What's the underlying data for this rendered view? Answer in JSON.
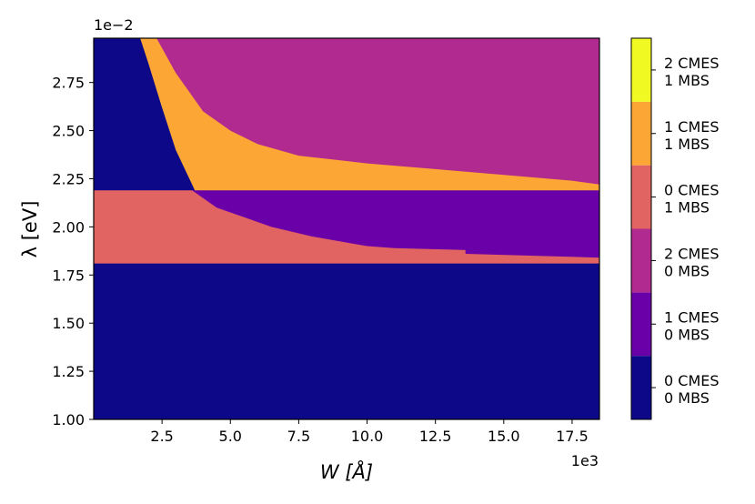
{
  "chart_data": {
    "type": "heatmap",
    "title": "",
    "xlabel": "W [Å]",
    "ylabel": "λ [eV]",
    "x_multiplier": "1e3",
    "y_multiplier": "1e−2",
    "xlim": [
      0,
      18.5
    ],
    "ylim": [
      1.0,
      2.98
    ],
    "x_ticks": [
      2.5,
      5.0,
      7.5,
      10.0,
      12.5,
      15.0,
      17.5
    ],
    "x_tick_labels": [
      "2.5",
      "5.0",
      "7.5",
      "10.0",
      "12.5",
      "15.0",
      "17.5"
    ],
    "y_ticks": [
      1.0,
      1.25,
      1.5,
      1.75,
      2.0,
      2.25,
      2.5,
      2.75
    ],
    "y_tick_labels": [
      "1.00",
      "1.25",
      "1.50",
      "1.75",
      "2.00",
      "2.25",
      "2.50",
      "2.75"
    ],
    "colormap": "plasma",
    "legend_placement": "colorbar-right",
    "classes": [
      {
        "id": 0,
        "line1": "0 CMES",
        "line2": "0 MBS",
        "color": "#0d0887"
      },
      {
        "id": 1,
        "line1": "1 CMES",
        "line2": "0 MBS",
        "color": "#6a00a8"
      },
      {
        "id": 2,
        "line1": "2 CMES",
        "line2": "0 MBS",
        "color": "#b12a90"
      },
      {
        "id": 3,
        "line1": "0 CMES",
        "line2": "1 MBS",
        "color": "#e16462"
      },
      {
        "id": 4,
        "line1": "1 CMES",
        "line2": "1 MBS",
        "color": "#fca636"
      },
      {
        "id": 5,
        "line1": "2 CMES",
        "line2": "1 MBS",
        "color": "#f0f921"
      }
    ],
    "regions": [
      {
        "class": 0,
        "description": "lambda < 1.81 for all W"
      },
      {
        "class": 3,
        "description": "1.81 < lambda < 2.19, left of boundary"
      },
      {
        "class": 1,
        "description": "1.81 < lambda < 2.19, right of boundary"
      },
      {
        "class": 0,
        "description": "lambda > 2.19, small W"
      },
      {
        "class": 4,
        "description": "lambda > 2.19, between boundaries"
      },
      {
        "class": 2,
        "description": "lambda > 2.19, large W"
      }
    ],
    "boundaries": {
      "lower_band_min": 1.81,
      "lower_band_max": 2.19,
      "class3_to_class1": [
        [
          3.6,
          2.19
        ],
        [
          4.5,
          2.1
        ],
        [
          5.5,
          2.05
        ],
        [
          6.5,
          2.0
        ],
        [
          8.0,
          1.95
        ],
        [
          10.0,
          1.9
        ],
        [
          11.0,
          1.89
        ],
        [
          13.6,
          1.88
        ],
        [
          13.6,
          1.86
        ],
        [
          18.5,
          1.84
        ]
      ],
      "class0_to_class4": [
        [
          1.7,
          2.98
        ],
        [
          2.0,
          2.85
        ],
        [
          2.5,
          2.62
        ],
        [
          3.0,
          2.4
        ],
        [
          3.5,
          2.25
        ],
        [
          3.7,
          2.19
        ]
      ],
      "class4_to_class2": [
        [
          2.3,
          2.98
        ],
        [
          3.0,
          2.8
        ],
        [
          4.0,
          2.6
        ],
        [
          5.0,
          2.5
        ],
        [
          6.0,
          2.43
        ],
        [
          7.5,
          2.37
        ],
        [
          10.0,
          2.33
        ],
        [
          12.5,
          2.3
        ],
        [
          15.0,
          2.27
        ],
        [
          17.5,
          2.24
        ],
        [
          18.5,
          2.22
        ]
      ]
    }
  }
}
